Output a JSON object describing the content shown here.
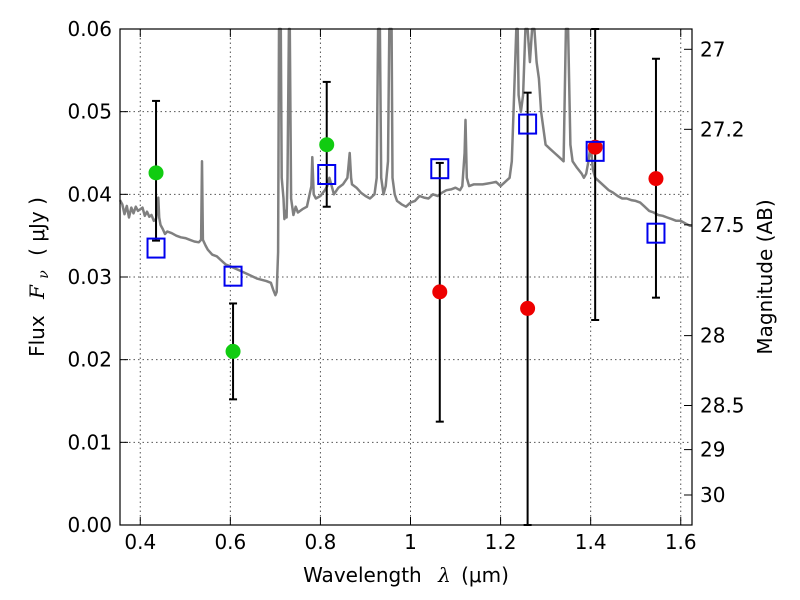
{
  "chart_data": {
    "type": "scatter",
    "xlabel": {
      "prefix": "Wavelength",
      "symbol": "λ",
      "units": "(μm)"
    },
    "ylabel": {
      "prefix": "Flux",
      "symbol": "F",
      "subscript": "ν",
      "units": "( μJy )"
    },
    "y2label": "Magnitude (AB)",
    "xlim": [
      0.355,
      1.625
    ],
    "ylim": [
      0.0,
      0.06
    ],
    "grid": true,
    "x_ticks": [
      {
        "value": 0.4,
        "label": "0.4"
      },
      {
        "value": 0.6,
        "label": "0.6"
      },
      {
        "value": 0.8,
        "label": "0.8"
      },
      {
        "value": 1.0,
        "label": "1"
      },
      {
        "value": 1.2,
        "label": "1.2"
      },
      {
        "value": 1.4,
        "label": "1.4"
      },
      {
        "value": 1.6,
        "label": "1.6"
      }
    ],
    "y_ticks": [
      {
        "value": 0.0,
        "label": "0.00"
      },
      {
        "value": 0.01,
        "label": "0.01"
      },
      {
        "value": 0.02,
        "label": "0.02"
      },
      {
        "value": 0.03,
        "label": "0.03"
      },
      {
        "value": 0.04,
        "label": "0.04"
      },
      {
        "value": 0.05,
        "label": "0.05"
      },
      {
        "value": 0.06,
        "label": "0.06"
      }
    ],
    "y2_ticks": [
      {
        "value": 27.0,
        "label": "27"
      },
      {
        "value": 27.2,
        "label": "27.2"
      },
      {
        "value": 27.5,
        "label": "27.5"
      },
      {
        "value": 28.0,
        "label": "28"
      },
      {
        "value": 28.5,
        "label": "28.5"
      },
      {
        "value": 29.0,
        "label": "29"
      },
      {
        "value": 30.0,
        "label": "30"
      }
    ],
    "colors": {
      "model": "#808080",
      "green": "#11cc11",
      "red": "#ee0000",
      "blue_square": "#0000ee",
      "errorbar": "#000000"
    },
    "series": [
      {
        "marker": "circle",
        "color": "#11cc11",
        "points": [
          {
            "x": 0.435,
            "y": 0.0426,
            "yerr_low": 0.0344,
            "yerr_high": 0.0513
          },
          {
            "x": 0.606,
            "y": 0.021,
            "yerr_low": 0.0152,
            "yerr_high": 0.0268
          },
          {
            "x": 0.814,
            "y": 0.046,
            "yerr_low": 0.0385,
            "yerr_high": 0.0536
          }
        ]
      },
      {
        "marker": "circle",
        "color": "#ee0000",
        "points": [
          {
            "x": 1.065,
            "y": 0.0282,
            "yerr_low": 0.0125,
            "yerr_high": 0.0438
          },
          {
            "x": 1.26,
            "y": 0.0262,
            "yerr_low": 0.0,
            "yerr_high": 0.0523
          },
          {
            "x": 1.41,
            "y": 0.0457,
            "yerr_low": 0.0248,
            "yerr_high": 0.06
          },
          {
            "x": 1.545,
            "y": 0.0419,
            "yerr_low": 0.0275,
            "yerr_high": 0.0564
          }
        ]
      },
      {
        "marker": "square-open",
        "color": "#0000ee",
        "points": [
          {
            "x": 0.435,
            "y": 0.0335
          },
          {
            "x": 0.606,
            "y": 0.0301
          },
          {
            "x": 0.814,
            "y": 0.0424
          },
          {
            "x": 1.065,
            "y": 0.0431
          },
          {
            "x": 1.26,
            "y": 0.0485
          },
          {
            "x": 1.41,
            "y": 0.0452
          },
          {
            "x": 1.545,
            "y": 0.0353
          }
        ]
      },
      {
        "type": "line",
        "color": "#808080",
        "points": [
          [
            0.355,
            0.0393
          ],
          [
            0.36,
            0.0388
          ],
          [
            0.365,
            0.0376
          ],
          [
            0.37,
            0.0386
          ],
          [
            0.375,
            0.0372
          ],
          [
            0.38,
            0.0384
          ],
          [
            0.385,
            0.0377
          ],
          [
            0.39,
            0.0385
          ],
          [
            0.395,
            0.038
          ],
          [
            0.4,
            0.0382
          ],
          [
            0.405,
            0.0384
          ],
          [
            0.41,
            0.0374
          ],
          [
            0.415,
            0.0379
          ],
          [
            0.42,
            0.0373
          ],
          [
            0.425,
            0.0375
          ],
          [
            0.43,
            0.0368
          ],
          [
            0.435,
            0.037
          ],
          [
            0.438,
            0.0382
          ],
          [
            0.44,
            0.0396
          ],
          [
            0.442,
            0.0372
          ],
          [
            0.445,
            0.0363
          ],
          [
            0.45,
            0.0358
          ],
          [
            0.455,
            0.0352
          ],
          [
            0.46,
            0.0355
          ],
          [
            0.47,
            0.0353
          ],
          [
            0.48,
            0.035
          ],
          [
            0.49,
            0.0348
          ],
          [
            0.5,
            0.0347
          ],
          [
            0.51,
            0.0345
          ],
          [
            0.52,
            0.0343
          ],
          [
            0.53,
            0.0342
          ],
          [
            0.535,
            0.0345
          ],
          [
            0.537,
            0.044
          ],
          [
            0.539,
            0.0345
          ],
          [
            0.545,
            0.0338
          ],
          [
            0.55,
            0.0333
          ],
          [
            0.56,
            0.0327
          ],
          [
            0.57,
            0.0325
          ],
          [
            0.58,
            0.032
          ],
          [
            0.59,
            0.0315
          ],
          [
            0.6,
            0.0313
          ],
          [
            0.62,
            0.0308
          ],
          [
            0.64,
            0.0303
          ],
          [
            0.66,
            0.0298
          ],
          [
            0.68,
            0.0295
          ],
          [
            0.69,
            0.0293
          ],
          [
            0.695,
            0.0285
          ],
          [
            0.7,
            0.0278
          ],
          [
            0.703,
            0.0282
          ],
          [
            0.706,
            0.033
          ],
          [
            0.708,
            0.06
          ],
          [
            0.712,
            0.06
          ],
          [
            0.714,
            0.042
          ],
          [
            0.718,
            0.0395
          ],
          [
            0.72,
            0.037
          ],
          [
            0.722,
            0.038
          ],
          [
            0.725,
            0.0372
          ],
          [
            0.727,
            0.042
          ],
          [
            0.73,
            0.06
          ],
          [
            0.732,
            0.06
          ],
          [
            0.735,
            0.0395
          ],
          [
            0.74,
            0.0375
          ],
          [
            0.745,
            0.0385
          ],
          [
            0.75,
            0.0378
          ],
          [
            0.76,
            0.0382
          ],
          [
            0.77,
            0.0385
          ],
          [
            0.78,
            0.041
          ],
          [
            0.782,
            0.0445
          ],
          [
            0.785,
            0.04
          ],
          [
            0.79,
            0.0395
          ],
          [
            0.8,
            0.0398
          ],
          [
            0.81,
            0.0405
          ],
          [
            0.815,
            0.041
          ],
          [
            0.82,
            0.042
          ],
          [
            0.825,
            0.041
          ],
          [
            0.83,
            0.04
          ],
          [
            0.84,
            0.0408
          ],
          [
            0.85,
            0.0412
          ],
          [
            0.86,
            0.042
          ],
          [
            0.865,
            0.045
          ],
          [
            0.868,
            0.042
          ],
          [
            0.87,
            0.0412
          ],
          [
            0.88,
            0.0408
          ],
          [
            0.89,
            0.0402
          ],
          [
            0.9,
            0.0398
          ],
          [
            0.91,
            0.0395
          ],
          [
            0.92,
            0.04
          ],
          [
            0.925,
            0.042
          ],
          [
            0.928,
            0.06
          ],
          [
            0.932,
            0.06
          ],
          [
            0.935,
            0.042
          ],
          [
            0.94,
            0.04
          ],
          [
            0.945,
            0.041
          ],
          [
            0.95,
            0.044
          ],
          [
            0.953,
            0.06
          ],
          [
            0.958,
            0.06
          ],
          [
            0.96,
            0.042
          ],
          [
            0.965,
            0.04
          ],
          [
            0.97,
            0.0392
          ],
          [
            0.98,
            0.0388
          ],
          [
            0.99,
            0.0385
          ],
          [
            1.0,
            0.039
          ],
          [
            1.01,
            0.0392
          ],
          [
            1.02,
            0.0398
          ],
          [
            1.03,
            0.0396
          ],
          [
            1.04,
            0.0395
          ],
          [
            1.05,
            0.04
          ],
          [
            1.06,
            0.0398
          ],
          [
            1.07,
            0.0402
          ],
          [
            1.08,
            0.0405
          ],
          [
            1.09,
            0.0406
          ],
          [
            1.1,
            0.0408
          ],
          [
            1.11,
            0.0405
          ],
          [
            1.115,
            0.041
          ],
          [
            1.12,
            0.045
          ],
          [
            1.122,
            0.049
          ],
          [
            1.125,
            0.042
          ],
          [
            1.13,
            0.041
          ],
          [
            1.14,
            0.0412
          ],
          [
            1.15,
            0.0412
          ],
          [
            1.16,
            0.0412
          ],
          [
            1.17,
            0.0413
          ],
          [
            1.18,
            0.0414
          ],
          [
            1.19,
            0.0415
          ],
          [
            1.2,
            0.041
          ],
          [
            1.21,
            0.0415
          ],
          [
            1.22,
            0.042
          ],
          [
            1.225,
            0.044
          ],
          [
            1.23,
            0.052
          ],
          [
            1.235,
            0.06
          ],
          [
            1.238,
            0.06
          ],
          [
            1.24,
            0.052
          ],
          [
            1.245,
            0.05
          ],
          [
            1.25,
            0.052
          ],
          [
            1.255,
            0.06
          ],
          [
            1.26,
            0.06
          ],
          [
            1.265,
            0.056
          ],
          [
            1.27,
            0.06
          ],
          [
            1.275,
            0.06
          ],
          [
            1.28,
            0.056
          ],
          [
            1.285,
            0.054
          ],
          [
            1.29,
            0.05
          ],
          [
            1.3,
            0.046
          ],
          [
            1.31,
            0.0455
          ],
          [
            1.32,
            0.045
          ],
          [
            1.33,
            0.0445
          ],
          [
            1.34,
            0.044
          ],
          [
            1.345,
            0.06
          ],
          [
            1.35,
            0.06
          ],
          [
            1.355,
            0.046
          ],
          [
            1.36,
            0.044
          ],
          [
            1.37,
            0.0432
          ],
          [
            1.38,
            0.0425
          ],
          [
            1.385,
            0.042
          ],
          [
            1.39,
            0.0425
          ],
          [
            1.395,
            0.044
          ],
          [
            1.4,
            0.046
          ],
          [
            1.405,
            0.043
          ],
          [
            1.41,
            0.042
          ],
          [
            1.42,
            0.0415
          ],
          [
            1.43,
            0.041
          ],
          [
            1.44,
            0.0405
          ],
          [
            1.45,
            0.0402
          ],
          [
            1.46,
            0.0398
          ],
          [
            1.47,
            0.0395
          ],
          [
            1.48,
            0.0395
          ],
          [
            1.49,
            0.0393
          ],
          [
            1.5,
            0.0392
          ],
          [
            1.51,
            0.039
          ],
          [
            1.52,
            0.0385
          ],
          [
            1.53,
            0.038
          ],
          [
            1.54,
            0.0378
          ],
          [
            1.55,
            0.0375
          ],
          [
            1.56,
            0.0374
          ],
          [
            1.57,
            0.0372
          ],
          [
            1.58,
            0.037
          ],
          [
            1.59,
            0.0368
          ],
          [
            1.6,
            0.0368
          ],
          [
            1.61,
            0.0365
          ],
          [
            1.62,
            0.0362
          ],
          [
            1.625,
            0.0362
          ]
        ]
      }
    ]
  }
}
